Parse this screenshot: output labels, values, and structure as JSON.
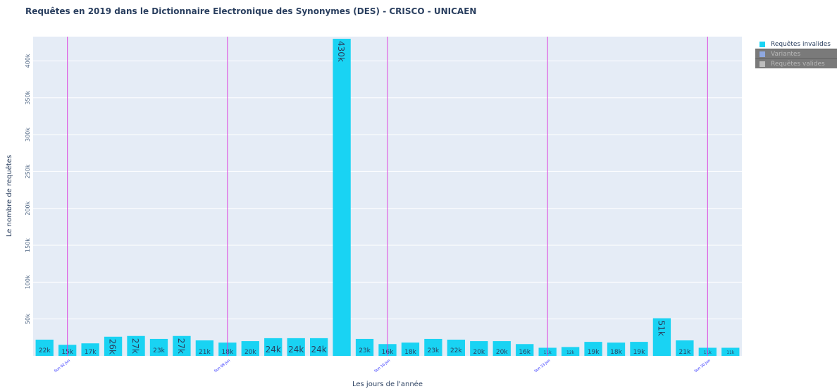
{
  "chart_data": {
    "type": "bar",
    "title": "Requêtes en 2019 dans le Dictionnaire Electronique des Synonymes (DES) - CRISCO - UNICAEN",
    "xlabel": "Les jours de l'année",
    "ylabel": "Le nombre de requêtes",
    "ylim": [
      0,
      430000
    ],
    "yticks": [
      50000,
      100000,
      150000,
      200000,
      250000,
      300000,
      350000,
      400000
    ],
    "ytick_labels": [
      "50k",
      "100k",
      "150k",
      "200k",
      "250k",
      "300k",
      "350k",
      "400k"
    ],
    "categories": [
      "1",
      "2",
      "3",
      "4",
      "5",
      "6",
      "7",
      "8",
      "9",
      "10",
      "11",
      "12",
      "13",
      "14",
      "15",
      "16",
      "17",
      "18",
      "19",
      "20",
      "21",
      "22",
      "23",
      "24",
      "25",
      "26",
      "27",
      "28",
      "29",
      "30",
      "31"
    ],
    "xtick_labels": [
      {
        "category": "2",
        "label": "Sun 02 Jun"
      },
      {
        "category": "9",
        "label": "Sun 09 Jun"
      },
      {
        "category": "16",
        "label": "Sun 16 Jun"
      },
      {
        "category": "23",
        "label": "Sun 23 Jun"
      },
      {
        "category": "30",
        "label": "Sun 30 Jun"
      }
    ],
    "vertical_lines_at": [
      "2",
      "9",
      "16",
      "23",
      "30"
    ],
    "grid": true,
    "legend_position": "top-right",
    "series": [
      {
        "name": "Requêtes invalides",
        "visible": true,
        "color": "#19d3f3",
        "values": [
          22000,
          15000,
          17000,
          26000,
          27000,
          23000,
          27000,
          21000,
          18000,
          20000,
          24000,
          24000,
          24000,
          430000,
          23000,
          16000,
          18000,
          23000,
          22000,
          20000,
          20000,
          16000,
          11000,
          12000,
          19000,
          18000,
          19000,
          51000,
          21000,
          11000,
          11000
        ],
        "labels": [
          "22k",
          "15k",
          "17k",
          "26k",
          "27k",
          "23k",
          "27k",
          "21k",
          "18k",
          "20k",
          "24k",
          "24k",
          "24k",
          "430k",
          "23k",
          "16k",
          "18k",
          "23k",
          "22k",
          "20k",
          "20k",
          "16k",
          "11k",
          "12k",
          "19k",
          "18k",
          "19k",
          "51k",
          "21k",
          "11k",
          "11k"
        ]
      },
      {
        "name": "Variantes",
        "visible": false,
        "color": "#636efa"
      },
      {
        "name": "Requêtes valides",
        "visible": false,
        "color": "#c8c8c8"
      }
    ],
    "plot_background": "#e5ecf6",
    "line_color": "#dd44dd",
    "text_color": "#2a3f5f",
    "tick_label_color": "#1a1aff"
  }
}
